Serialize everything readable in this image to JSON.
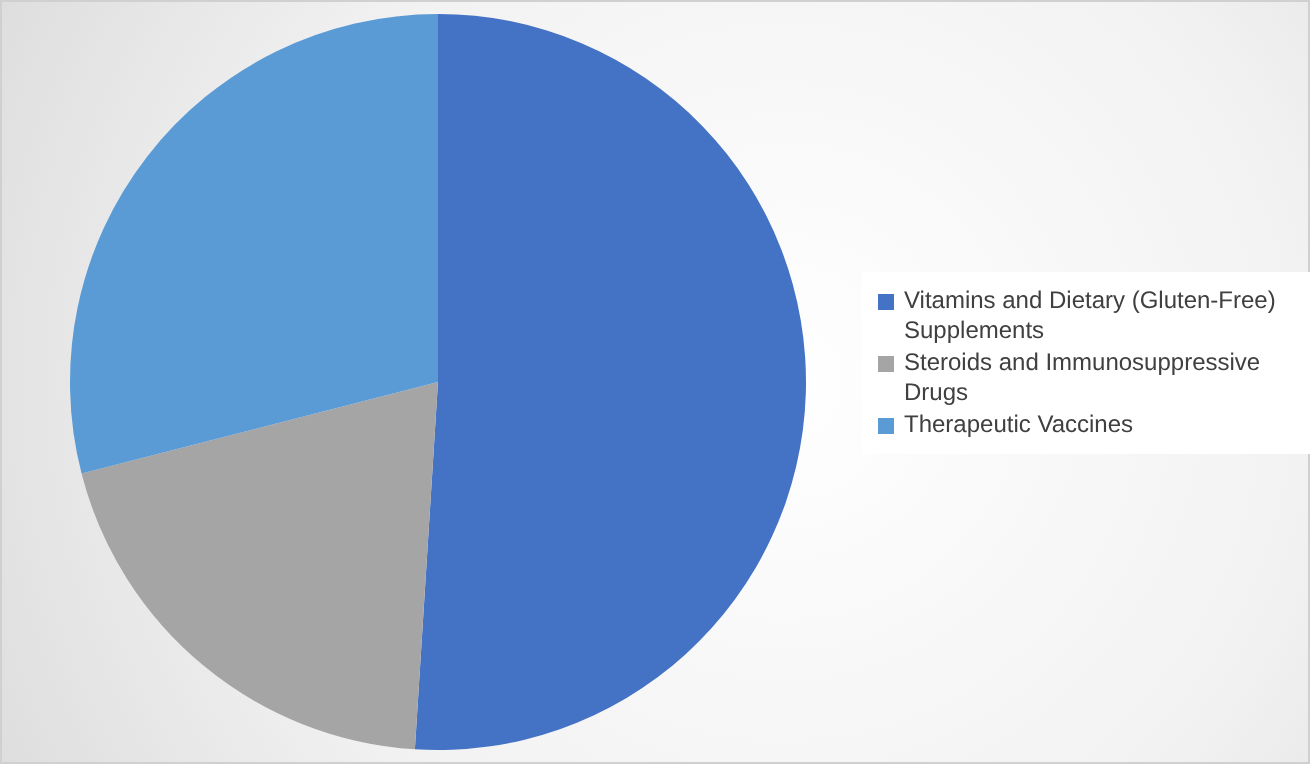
{
  "chart_data": {
    "type": "pie",
    "categories": [
      "Vitamins and Dietary (Gluten-Free) Supplements",
      "Steroids and Immunosuppressive Drugs",
      "Therapeutic Vaccines"
    ],
    "values": [
      51,
      20,
      29
    ],
    "colors": [
      "#4472c4",
      "#a5a5a5",
      "#5b9bd5"
    ],
    "legend": "right"
  }
}
